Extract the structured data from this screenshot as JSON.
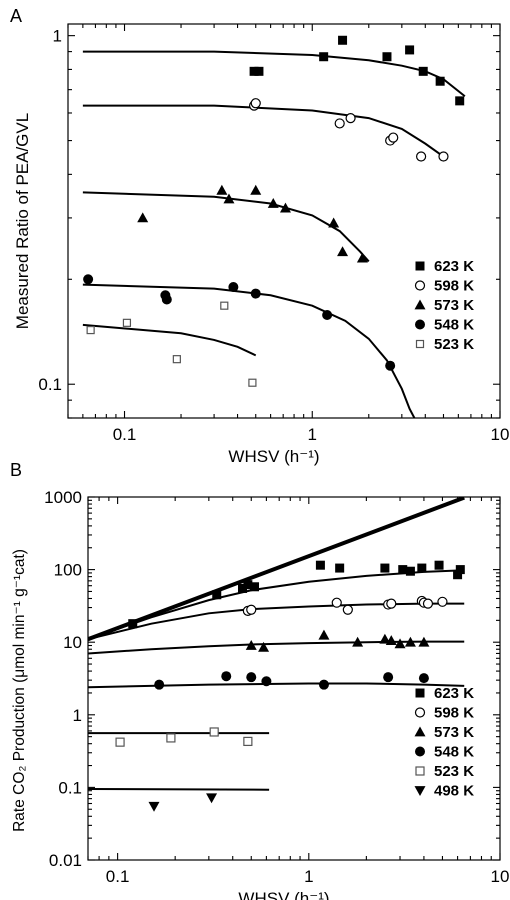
{
  "chart_data": [
    {
      "panel": "A",
      "type": "scatter",
      "xscale": "log",
      "yscale": "log",
      "xlim": [
        0.05,
        10
      ],
      "ylim": [
        0.08,
        1.08
      ],
      "xlabel": "WHSV (h⁻¹)",
      "ylabel": "Measured Ratio of PEA/GVL",
      "xticks": [
        {
          "v": 0.1,
          "label": "0.1"
        },
        {
          "v": 1,
          "label": "1"
        },
        {
          "v": 10,
          "label": "10"
        }
      ],
      "yticks": [
        {
          "v": 0.1,
          "label": "0.1"
        },
        {
          "v": 1,
          "label": "1"
        }
      ],
      "legend_position": "bottom-right",
      "series": [
        {
          "name": "623 K",
          "marker": "square-filled",
          "size": 9,
          "points": [
            [
              0.49,
              0.79
            ],
            [
              0.52,
              0.79
            ],
            [
              1.15,
              0.87
            ],
            [
              1.45,
              0.97
            ],
            [
              2.5,
              0.87
            ],
            [
              3.3,
              0.91
            ],
            [
              3.9,
              0.79
            ],
            [
              4.8,
              0.74
            ],
            [
              6.1,
              0.65
            ]
          ],
          "fit": [
            [
              0.06,
              0.9
            ],
            [
              0.3,
              0.9
            ],
            [
              1.0,
              0.88
            ],
            [
              2.0,
              0.85
            ],
            [
              3.0,
              0.82
            ],
            [
              4.0,
              0.79
            ],
            [
              5.0,
              0.75
            ],
            [
              6.5,
              0.67
            ]
          ]
        },
        {
          "name": "598 K",
          "marker": "circle-open",
          "size": 10,
          "points": [
            [
              0.49,
              0.63
            ],
            [
              0.5,
              0.64
            ],
            [
              1.4,
              0.56
            ],
            [
              1.6,
              0.58
            ],
            [
              2.6,
              0.5
            ],
            [
              2.7,
              0.51
            ],
            [
              3.8,
              0.45
            ],
            [
              5.0,
              0.45
            ]
          ],
          "fit": [
            [
              0.06,
              0.63
            ],
            [
              0.3,
              0.63
            ],
            [
              1.0,
              0.61
            ],
            [
              2.0,
              0.58
            ],
            [
              3.0,
              0.54
            ],
            [
              4.0,
              0.49
            ],
            [
              5.0,
              0.45
            ]
          ]
        },
        {
          "name": "573 K",
          "marker": "triangle-filled",
          "size": 11,
          "points": [
            [
              0.125,
              0.3
            ],
            [
              0.33,
              0.36
            ],
            [
              0.36,
              0.34
            ],
            [
              0.5,
              0.36
            ],
            [
              0.62,
              0.33
            ],
            [
              0.72,
              0.32
            ],
            [
              1.3,
              0.29
            ],
            [
              1.45,
              0.24
            ],
            [
              1.85,
              0.23
            ]
          ],
          "fit": [
            [
              0.06,
              0.355
            ],
            [
              0.3,
              0.345
            ],
            [
              0.6,
              0.33
            ],
            [
              1.0,
              0.305
            ],
            [
              1.4,
              0.275
            ],
            [
              1.8,
              0.24
            ],
            [
              2.0,
              0.225
            ]
          ]
        },
        {
          "name": "548 K",
          "marker": "circle-filled",
          "size": 10,
          "points": [
            [
              0.064,
              0.2
            ],
            [
              0.165,
              0.18
            ],
            [
              0.168,
              0.175
            ],
            [
              0.38,
              0.19
            ],
            [
              0.5,
              0.182
            ],
            [
              1.2,
              0.158
            ],
            [
              2.6,
              0.113
            ]
          ],
          "fit": [
            [
              0.06,
              0.193
            ],
            [
              0.3,
              0.188
            ],
            [
              0.6,
              0.18
            ],
            [
              1.0,
              0.168
            ],
            [
              1.5,
              0.152
            ],
            [
              2.0,
              0.135
            ],
            [
              2.5,
              0.117
            ],
            [
              3.0,
              0.097
            ],
            [
              3.3,
              0.085
            ],
            [
              3.5,
              0.08
            ]
          ]
        },
        {
          "name": "523 K",
          "marker": "square-open",
          "size": 7,
          "points": [
            [
              0.066,
              0.143
            ],
            [
              0.103,
              0.15
            ],
            [
              0.19,
              0.118
            ],
            [
              0.34,
              0.168
            ],
            [
              0.48,
              0.101
            ]
          ],
          "fit": [
            [
              0.06,
              0.148
            ],
            [
              0.2,
              0.14
            ],
            [
              0.3,
              0.134
            ],
            [
              0.4,
              0.128
            ],
            [
              0.5,
              0.121
            ]
          ]
        }
      ]
    },
    {
      "panel": "B",
      "type": "scatter",
      "xscale": "log",
      "yscale": "log",
      "xlim": [
        0.07,
        10
      ],
      "ylim": [
        0.01,
        1000
      ],
      "xlabel": "WHSV (h⁻¹)",
      "ylabel": "Rate CO₂ Production (μmol min⁻¹ g⁻¹cat)",
      "xticks": [
        {
          "v": 0.1,
          "label": "0.1"
        },
        {
          "v": 1,
          "label": "1"
        },
        {
          "v": 10,
          "label": "10"
        }
      ],
      "yticks": [
        {
          "v": 0.01,
          "label": "0.01"
        },
        {
          "v": 0.1,
          "label": "0.1"
        },
        {
          "v": 1,
          "label": "1"
        },
        {
          "v": 10,
          "label": "10"
        },
        {
          "v": 100,
          "label": "100"
        },
        {
          "v": 1000,
          "label": "1000"
        }
      ],
      "legend_position": "bottom-right",
      "diagonal_line": [
        [
          0.07,
          11
        ],
        [
          6.5,
          980
        ]
      ],
      "series": [
        {
          "name": "623 K",
          "marker": "square-filled",
          "size": 9,
          "points": [
            [
              0.12,
              18
            ],
            [
              0.33,
              45
            ],
            [
              0.45,
              55
            ],
            [
              0.48,
              62
            ],
            [
              0.52,
              58
            ],
            [
              1.15,
              115
            ],
            [
              1.45,
              105
            ],
            [
              2.5,
              105
            ],
            [
              3.1,
              100
            ],
            [
              3.4,
              95
            ],
            [
              3.9,
              105
            ],
            [
              4.8,
              115
            ],
            [
              6.0,
              85
            ],
            [
              6.2,
              100
            ]
          ],
          "fit": [
            [
              0.07,
              11
            ],
            [
              0.15,
              22
            ],
            [
              0.3,
              38
            ],
            [
              0.5,
              52
            ],
            [
              1.0,
              68
            ],
            [
              2.0,
              82
            ],
            [
              4.0,
              93
            ],
            [
              6.5,
              98
            ]
          ]
        },
        {
          "name": "598 K",
          "marker": "circle-open",
          "size": 10,
          "points": [
            [
              0.48,
              27
            ],
            [
              0.5,
              28
            ],
            [
              1.4,
              35
            ],
            [
              1.6,
              28
            ],
            [
              2.6,
              33
            ],
            [
              2.7,
              34
            ],
            [
              3.9,
              37
            ],
            [
              4.0,
              35
            ],
            [
              4.2,
              34
            ],
            [
              5.0,
              36
            ]
          ],
          "fit": [
            [
              0.07,
              11
            ],
            [
              0.15,
              18
            ],
            [
              0.3,
              25
            ],
            [
              0.5,
              28.5
            ],
            [
              1.0,
              31
            ],
            [
              2.0,
              33
            ],
            [
              4.0,
              34
            ],
            [
              6.5,
              34
            ]
          ]
        },
        {
          "name": "573 K",
          "marker": "triangle-filled",
          "size": 11,
          "points": [
            [
              0.5,
              9
            ],
            [
              0.58,
              8.5
            ],
            [
              1.2,
              12.5
            ],
            [
              1.8,
              10
            ],
            [
              2.5,
              11
            ],
            [
              2.7,
              10.5
            ],
            [
              3.0,
              9.5
            ],
            [
              3.4,
              10
            ],
            [
              4.0,
              10
            ]
          ],
          "fit": [
            [
              0.07,
              7
            ],
            [
              0.15,
              8
            ],
            [
              0.3,
              8.8
            ],
            [
              0.5,
              9.3
            ],
            [
              1.0,
              9.7
            ],
            [
              2.0,
              10
            ],
            [
              4.0,
              10.2
            ],
            [
              6.5,
              10.2
            ]
          ]
        },
        {
          "name": "548 K",
          "marker": "circle-filled",
          "size": 10,
          "points": [
            [
              0.165,
              2.6
            ],
            [
              0.37,
              3.4
            ],
            [
              0.5,
              3.3
            ],
            [
              0.6,
              2.9
            ],
            [
              1.2,
              2.6
            ],
            [
              2.6,
              3.3
            ],
            [
              4.0,
              3.2
            ]
          ],
          "fit": [
            [
              0.07,
              2.4
            ],
            [
              0.3,
              2.6
            ],
            [
              1.0,
              2.7
            ],
            [
              2.0,
              2.7
            ],
            [
              4.0,
              2.6
            ],
            [
              6.5,
              2.5
            ]
          ]
        },
        {
          "name": "523 K",
          "marker": "square-open",
          "size": 8,
          "points": [
            [
              0.103,
              0.42
            ],
            [
              0.19,
              0.48
            ],
            [
              0.32,
              0.58
            ],
            [
              0.48,
              0.43
            ]
          ],
          "fit": [
            [
              0.07,
              0.56
            ],
            [
              0.62,
              0.56
            ]
          ]
        },
        {
          "name": "498 K",
          "marker": "triangle-down-filled",
          "size": 11,
          "points": [
            [
              0.155,
              0.055
            ],
            [
              0.31,
              0.072
            ]
          ],
          "fit": [
            [
              0.07,
              0.095
            ],
            [
              0.62,
              0.093
            ]
          ]
        }
      ]
    }
  ]
}
